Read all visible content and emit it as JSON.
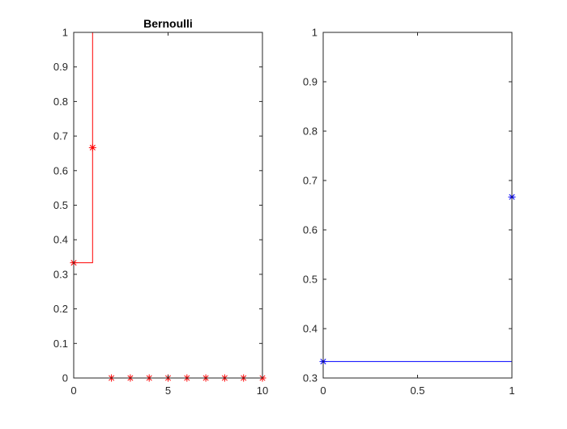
{
  "chart_data": [
    {
      "type": "line",
      "style": "stairs-with-markers",
      "title": "Bernoulli",
      "xlabel": "",
      "ylabel": "",
      "xlim": [
        0,
        10
      ],
      "ylim": [
        0,
        1
      ],
      "xticks": [
        0,
        5,
        10
      ],
      "xtick_labels": [
        "0",
        "5",
        "10"
      ],
      "yticks": [
        0,
        0.1,
        0.2,
        0.3,
        0.4,
        0.5,
        0.6,
        0.7,
        0.8,
        0.9,
        1
      ],
      "ytick_labels": [
        "0",
        "0.1",
        "0.2",
        "0.3",
        "0.4",
        "0.5",
        "0.6",
        "0.7",
        "0.8",
        "0.9",
        "1"
      ],
      "grid": false,
      "box": true,
      "series": [
        {
          "kind": "stairs",
          "color": "#ff0000",
          "x": [
            0,
            1,
            10
          ],
          "y": [
            0.3333,
            1,
            1
          ]
        },
        {
          "kind": "markers",
          "marker": "asterisk",
          "color": "#ff0000",
          "x": [
            0,
            1,
            2,
            3,
            4,
            5,
            6,
            7,
            8,
            9,
            10
          ],
          "y": [
            0.3333,
            0.6667,
            0,
            0,
            0,
            0,
            0,
            0,
            0,
            0,
            0
          ]
        }
      ]
    },
    {
      "type": "line",
      "style": "stairs-with-markers",
      "title": "",
      "xlabel": "",
      "ylabel": "",
      "xlim": [
        0,
        1
      ],
      "ylim": [
        0.3,
        1
      ],
      "xticks": [
        0,
        0.5,
        1
      ],
      "xtick_labels": [
        "0",
        "0.5",
        "1"
      ],
      "yticks": [
        0.3,
        0.4,
        0.5,
        0.6,
        0.7,
        0.8,
        0.9,
        1
      ],
      "ytick_labels": [
        "0.3",
        "0.4",
        "0.5",
        "0.6",
        "0.7",
        "0.8",
        "0.9",
        "1"
      ],
      "grid": false,
      "box": true,
      "series": [
        {
          "kind": "stairs",
          "color": "#0000ff",
          "x": [
            0,
            1,
            1
          ],
          "y": [
            0.3333,
            0.3333,
            1
          ]
        },
        {
          "kind": "markers",
          "marker": "asterisk",
          "color": "#0000ff",
          "x": [
            0,
            1
          ],
          "y": [
            0.3333,
            0.6667
          ]
        }
      ]
    }
  ]
}
